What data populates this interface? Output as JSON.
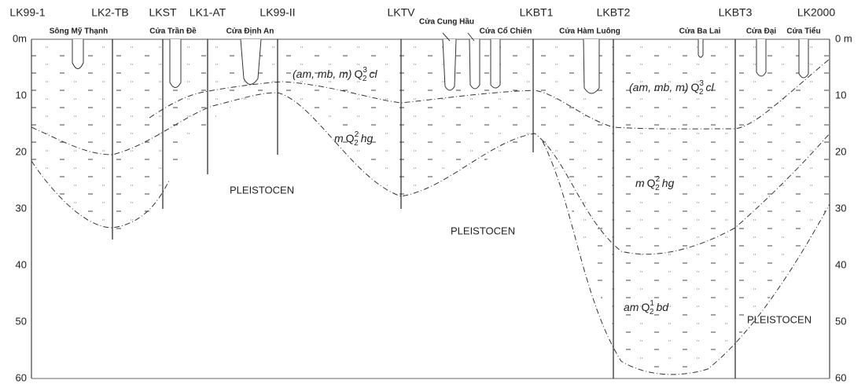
{
  "boreholes": [
    "LK99-1",
    "LK2-TB",
    "LKST",
    "LK1-AT",
    "LK99-II",
    "LKTV",
    "LKBT1",
    "LKBT2",
    "LKBT3",
    "LK2000"
  ],
  "rivers": [
    "Sông Mỹ Thạnh",
    "Cửa Trần Đề",
    "Cửa Định An",
    "Cửa Cung Hầu",
    "Cửa Cổ Chiên",
    "Cửa Hàm Luông",
    "Cửa Ba Lai",
    "Cửa Đại",
    "Cửa Tiểu"
  ],
  "depth_labels_left": [
    "0m",
    "10",
    "20",
    "30",
    "40",
    "50",
    "60"
  ],
  "depth_labels_right": [
    "0 m",
    "10",
    "20",
    "30",
    "40",
    "50",
    "60"
  ],
  "formations": [
    {
      "prefix": "(am, mb, m)",
      "symbol": "Q",
      "sup": "3",
      "sub": "2",
      "suffix": "cl"
    },
    {
      "prefix": "(am, mb, m)",
      "symbol": "Q",
      "sup": "3",
      "sub": "2",
      "suffix": "cl"
    },
    {
      "prefix": "m",
      "symbol": "Q",
      "sup": "2",
      "sub": "2",
      "suffix": "hg"
    },
    {
      "prefix": "m",
      "symbol": "Q",
      "sup": "2",
      "sub": "2",
      "suffix": "hg"
    },
    {
      "prefix": "am",
      "symbol": "Q",
      "sup": "1",
      "sub": "2",
      "suffix": "bd"
    }
  ],
  "pleistocene_labels": [
    "PLEISTOCEN",
    "PLEISTOCEN",
    "PLEISTOCEN"
  ]
}
